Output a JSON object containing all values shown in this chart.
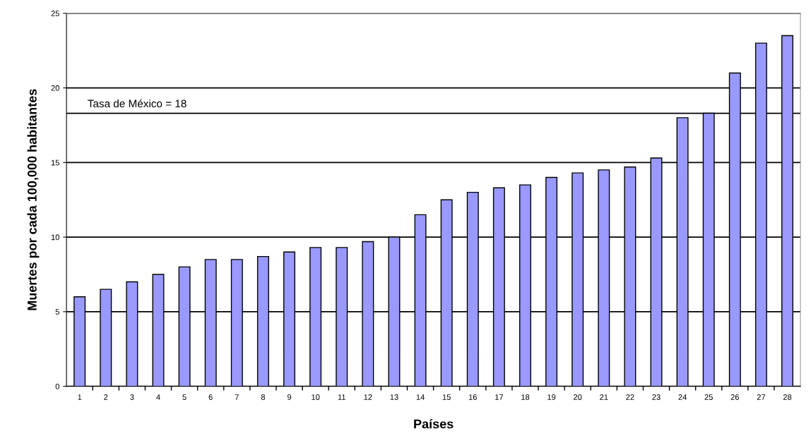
{
  "chart_data": {
    "type": "bar",
    "xlabel": "Países",
    "ylabel": "Muertes por cada 100,000 habitantes",
    "categories": [
      "1",
      "2",
      "3",
      "4",
      "5",
      "6",
      "7",
      "8",
      "9",
      "10",
      "11",
      "12",
      "13",
      "14",
      "15",
      "16",
      "17",
      "18",
      "19",
      "20",
      "21",
      "22",
      "23",
      "24",
      "25",
      "26",
      "27",
      "28"
    ],
    "values": [
      6,
      6.5,
      7,
      7.5,
      8,
      8.5,
      8.5,
      8.7,
      9,
      9.3,
      9.3,
      9.7,
      10,
      11.5,
      12.5,
      13,
      13.3,
      13.5,
      14,
      14.3,
      14.5,
      14.7,
      15.3,
      18,
      18.3,
      21,
      23,
      23.5
    ],
    "color": "#9999ff",
    "ylim": [
      0,
      25
    ],
    "yticks": [
      0,
      5,
      10,
      15,
      20,
      25
    ],
    "grid": "y",
    "ref_lines": [
      {
        "axis": "y",
        "value": 18.3,
        "label": "Tasa de México = 18",
        "color": "#000000"
      }
    ]
  }
}
